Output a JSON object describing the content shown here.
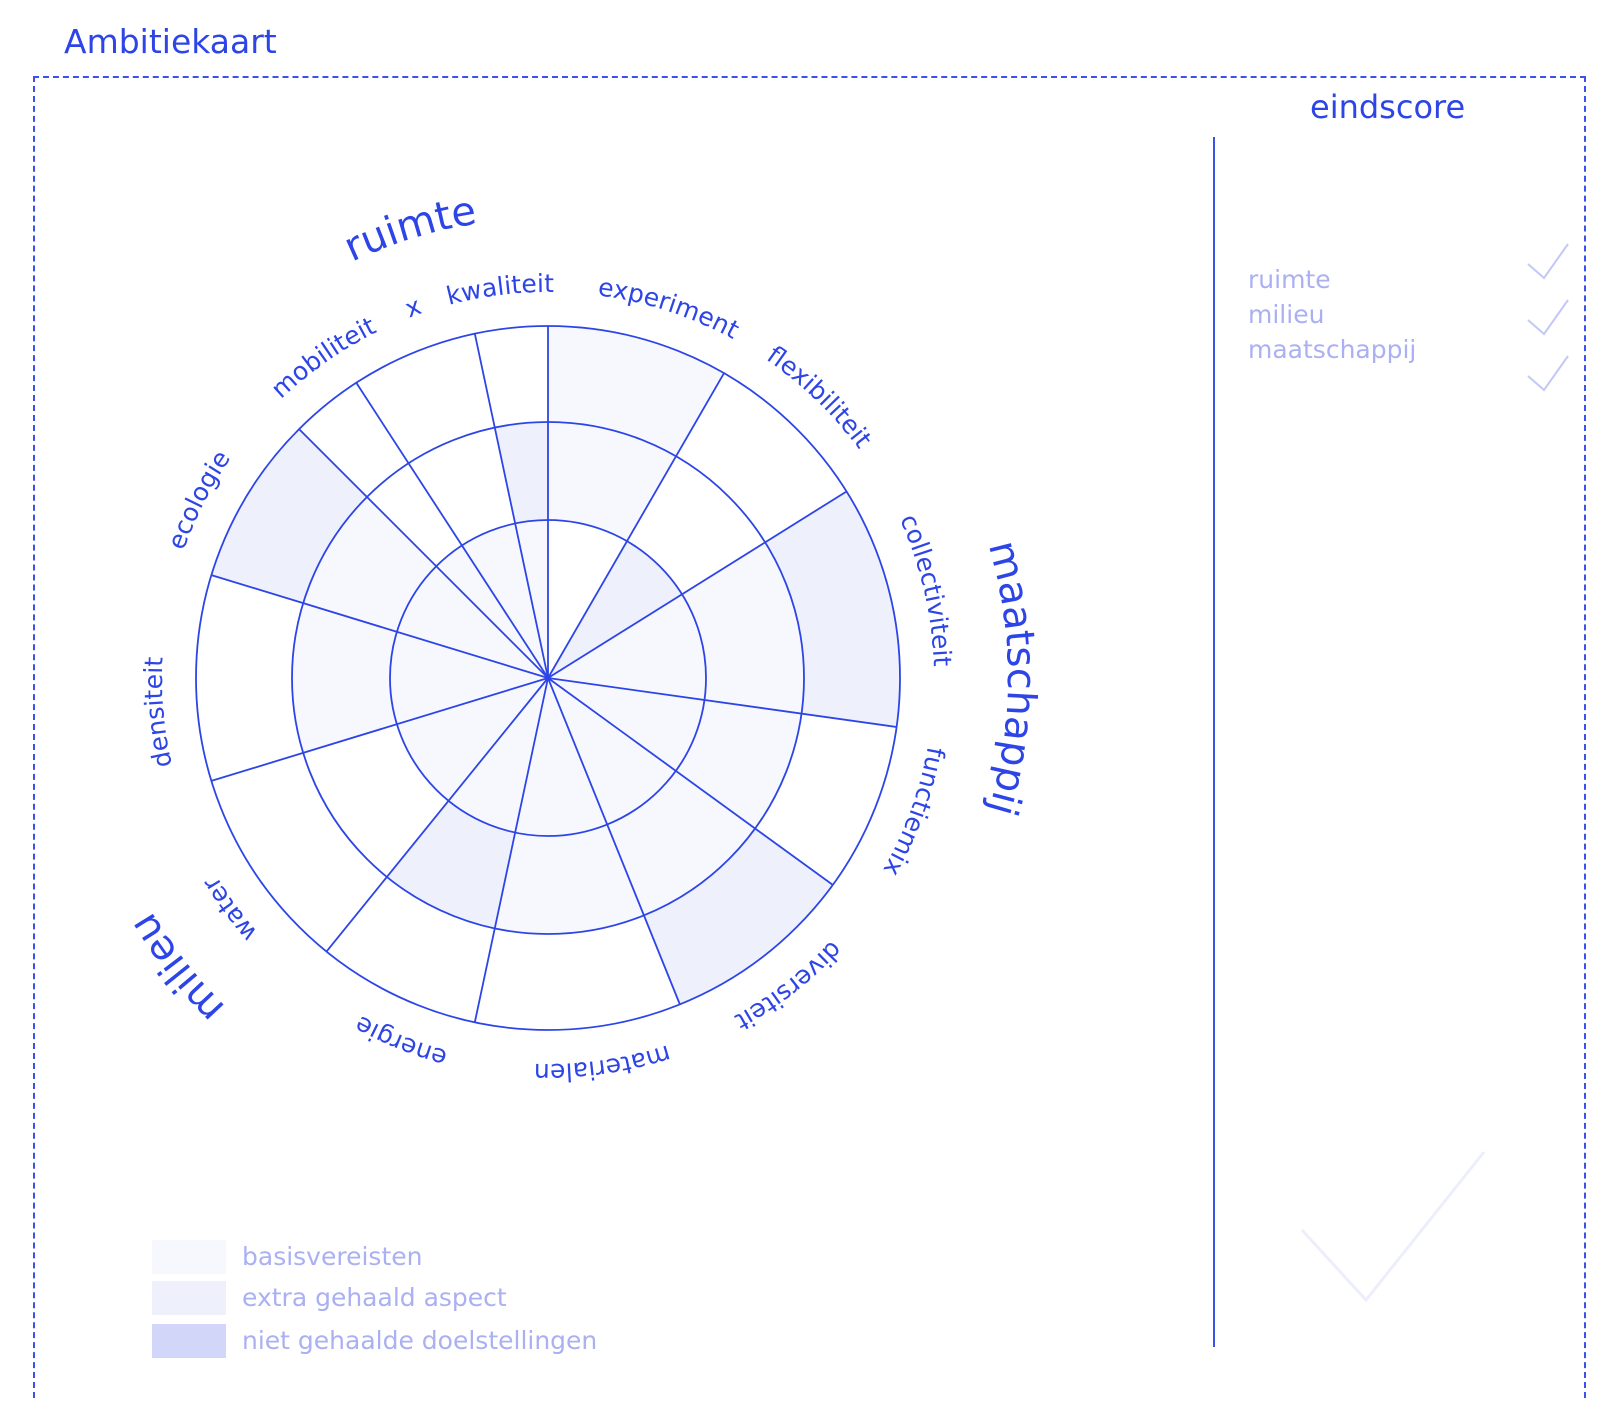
{
  "header": {
    "title": "Ambitiekaart"
  },
  "wheel": {
    "rings": 3,
    "aspects": [
      {
        "label": "experiment",
        "fills": [
          0,
          1,
          1
        ]
      },
      {
        "label": "flexibiliteit",
        "fills": [
          2,
          0,
          0
        ]
      },
      {
        "label": "collectiviteit",
        "fills": [
          1,
          1,
          2
        ]
      },
      {
        "label": "functiemix",
        "fills": [
          1,
          1,
          0
        ]
      },
      {
        "label": "diversiteit",
        "fills": [
          1,
          1,
          2
        ]
      },
      {
        "label": "materialen",
        "fills": [
          1,
          1,
          0
        ]
      },
      {
        "label": "energie",
        "fills": [
          1,
          2,
          0
        ]
      },
      {
        "label": "water",
        "fills": [
          1,
          0,
          0
        ]
      },
      {
        "label": "densiteit",
        "fills": [
          1,
          1,
          0
        ]
      },
      {
        "label": "ecologie",
        "fills": [
          1,
          1,
          2
        ]
      },
      {
        "label": "mobiliteit",
        "fills": [
          1,
          0,
          0
        ]
      },
      {
        "label": "x",
        "fills": [
          1,
          0,
          0
        ]
      },
      {
        "label": "kwaliteit",
        "fills": [
          1,
          2,
          0
        ]
      }
    ],
    "categories": [
      {
        "label": "ruimte"
      },
      {
        "label": "maatschappij"
      },
      {
        "label": "milieu"
      }
    ]
  },
  "eindscore": {
    "title": "eindscore",
    "items": [
      {
        "label": "ruimte"
      },
      {
        "label": "milieu"
      },
      {
        "label": "maatschappij"
      }
    ]
  },
  "legend": [
    {
      "label": "basisvereisten",
      "color": "#f7f8fe"
    },
    {
      "label": "extra gehaald aspect",
      "color": "#eef0fc"
    },
    {
      "label": "niet gehaalde doelstellingen",
      "color": "#d2d6f8"
    }
  ],
  "colors": {
    "line": "#2d45e6",
    "fill_basis": "#f7f8fe",
    "fill_extra": "#eef0fc",
    "muted_text": "#aab0f2"
  }
}
